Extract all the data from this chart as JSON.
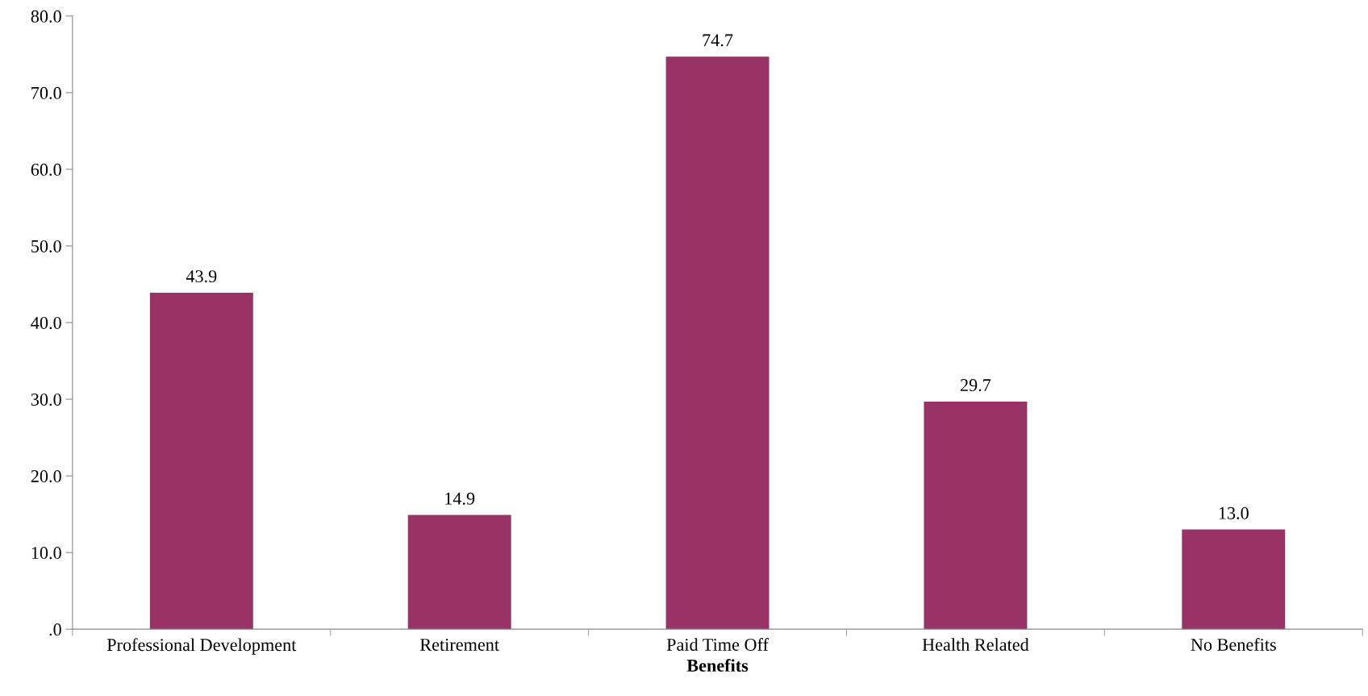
{
  "chart_data": {
    "type": "bar",
    "xlabel": "Benefits",
    "categories": [
      "Professional Development",
      "Retirement",
      "Paid Time Off",
      "Health Related",
      "No Benefits"
    ],
    "values": [
      43.9,
      14.9,
      74.7,
      29.7,
      13.0
    ],
    "color": "#993366",
    "value_labels": [
      "43.9",
      "14.9",
      "74.7",
      "29.7",
      "13.0"
    ],
    "ylim": [
      0,
      80
    ],
    "yticks": [
      {
        "value": 0,
        "label": ".0"
      },
      {
        "value": 10,
        "label": "10.0"
      },
      {
        "value": 20,
        "label": "20.0"
      },
      {
        "value": 30,
        "label": "30.0"
      },
      {
        "value": 40,
        "label": "40.0"
      },
      {
        "value": 50,
        "label": "50.0"
      },
      {
        "value": 60,
        "label": "60.0"
      },
      {
        "value": 70,
        "label": "70.0"
      },
      {
        "value": 80,
        "label": "80.0"
      }
    ],
    "grid": false,
    "legend": false
  }
}
